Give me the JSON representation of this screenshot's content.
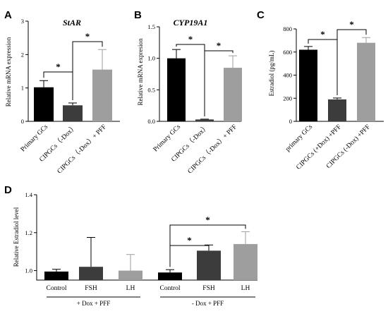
{
  "chart_data": [
    {
      "panel": "A",
      "type": "bar",
      "title": "StAR",
      "ylabel": "Relative mRNA expression",
      "ylim": [
        0,
        3
      ],
      "yticks": [
        "0",
        "1",
        "2",
        "3"
      ],
      "categories": [
        "Primary GCs",
        "CIPGCs（-Dox）",
        "CIPGCs（-Dox）+ PFF"
      ],
      "values": [
        1.02,
        0.48,
        1.55
      ],
      "errors": [
        0.2,
        0.07,
        0.6
      ],
      "colors": [
        "#000000",
        "#3c3c3c",
        "#9e9e9e"
      ],
      "significance": [
        {
          "from": 0,
          "to": 1,
          "label": "*"
        },
        {
          "from": 1,
          "to": 2,
          "label": "*"
        }
      ]
    },
    {
      "panel": "B",
      "type": "bar",
      "title": "CYP19A1",
      "ylabel": "Relative mRNA expresion",
      "ylim": [
        0,
        1.5
      ],
      "yticks": [
        "0.0",
        "0.5",
        "1.0",
        "1.5"
      ],
      "categories": [
        "Primary GCs",
        "CIPGCs（-Dox）",
        "CIPGCs（-Dox）+ PFF"
      ],
      "values": [
        1.0,
        0.03,
        0.85
      ],
      "errors": [
        0.14,
        0.005,
        0.19
      ],
      "colors": [
        "#000000",
        "#3c3c3c",
        "#9e9e9e"
      ],
      "significance": [
        {
          "from": 0,
          "to": 1,
          "label": "*"
        },
        {
          "from": 1,
          "to": 2,
          "label": "*"
        }
      ]
    },
    {
      "panel": "C",
      "type": "bar",
      "title": "",
      "ylabel": "Estradiol (pg/mL)",
      "ylim": [
        0,
        800
      ],
      "yticks": [
        "0",
        "200",
        "400",
        "600",
        "800"
      ],
      "categories": [
        "primary GCs",
        "CIPGCs (+Dox) +PFF",
        "CIPGCs (-Dox) +PFF"
      ],
      "values": [
        620,
        190,
        680
      ],
      "errors": [
        28,
        12,
        45
      ],
      "colors": [
        "#000000",
        "#3c3c3c",
        "#9e9e9e"
      ],
      "significance": [
        {
          "from": 0,
          "to": 1,
          "label": "*"
        },
        {
          "from": 1,
          "to": 2,
          "label": "*"
        }
      ]
    },
    {
      "panel": "D",
      "type": "bar",
      "title": "",
      "ylabel": "Relative Estradiol level",
      "ylim": [
        0.95,
        1.4
      ],
      "yticks": [
        "1.0",
        "1.2",
        "1.4"
      ],
      "categories": [
        "Control",
        "FSH",
        "LH",
        "Control",
        "FSH",
        "LH"
      ],
      "groups": [
        "+ Dox + PFF",
        "- Dox + PFF"
      ],
      "values": [
        0.995,
        1.02,
        1.0,
        0.99,
        1.105,
        1.14
      ],
      "errors": [
        0.012,
        0.155,
        0.085,
        0.015,
        0.03,
        0.065
      ],
      "colors": [
        "#000000",
        "#3c3c3c",
        "#9e9e9e",
        "#000000",
        "#3c3c3c",
        "#9e9e9e"
      ],
      "significance": [
        {
          "from": 3,
          "to": 4,
          "label": "*"
        },
        {
          "from": 3,
          "to": 5,
          "label": "*"
        }
      ]
    }
  ]
}
